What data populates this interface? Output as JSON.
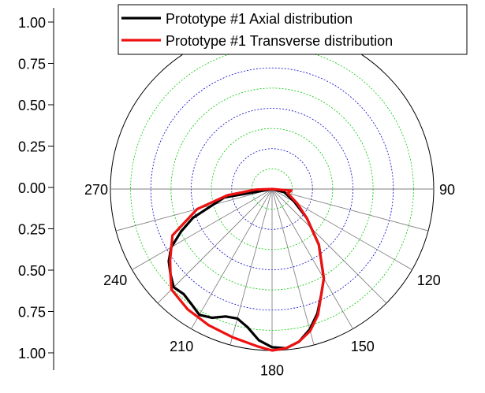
{
  "chart_data": {
    "type": "polar-line",
    "radial_axis": {
      "ticks": [
        "1.00",
        "0.75",
        "0.50",
        "0.25",
        "0.00",
        "0.25",
        "0.50",
        "0.75",
        "1.00"
      ],
      "range": [
        0,
        1
      ]
    },
    "angular_axis": {
      "ticks": [
        90,
        120,
        150,
        180,
        210,
        240,
        270
      ],
      "zero_direction": "up",
      "orientation": "clockwise"
    },
    "grid": true,
    "grid_colors": [
      "#0000cc",
      "#00cc00"
    ],
    "legend": {
      "position": "top-right"
    },
    "series": [
      {
        "name": "Prototype #1 Axial distribution",
        "color": "#000000",
        "points": [
          [
            90,
            0.0
          ],
          [
            105,
            0.08
          ],
          [
            120,
            0.16
          ],
          [
            130,
            0.28
          ],
          [
            140,
            0.45
          ],
          [
            150,
            0.64
          ],
          [
            155,
            0.72
          ],
          [
            160,
            0.82
          ],
          [
            165,
            0.9
          ],
          [
            170,
            0.96
          ],
          [
            175,
            0.99
          ],
          [
            180,
            0.98
          ],
          [
            185,
            0.94
          ],
          [
            190,
            0.87
          ],
          [
            195,
            0.83
          ],
          [
            200,
            0.84
          ],
          [
            205,
            0.88
          ],
          [
            210,
            0.9
          ],
          [
            215,
            0.87
          ],
          [
            220,
            0.85
          ],
          [
            225,
            0.86
          ],
          [
            230,
            0.82
          ],
          [
            235,
            0.78
          ],
          [
            240,
            0.72
          ],
          [
            245,
            0.62
          ],
          [
            250,
            0.52
          ],
          [
            260,
            0.3
          ],
          [
            270,
            0.0
          ]
        ]
      },
      {
        "name": "Prototype #1 Transverse distribution",
        "color": "#ee1111",
        "points": [
          [
            90,
            0.0
          ],
          [
            95,
            0.12
          ],
          [
            105,
            0.1
          ],
          [
            120,
            0.18
          ],
          [
            130,
            0.28
          ],
          [
            140,
            0.45
          ],
          [
            150,
            0.64
          ],
          [
            155,
            0.72
          ],
          [
            160,
            0.83
          ],
          [
            165,
            0.91
          ],
          [
            170,
            0.96
          ],
          [
            175,
            0.99
          ],
          [
            180,
            1.0
          ],
          [
            185,
            0.98
          ],
          [
            195,
            0.95
          ],
          [
            205,
            0.93
          ],
          [
            215,
            0.91
          ],
          [
            225,
            0.88
          ],
          [
            230,
            0.82
          ],
          [
            235,
            0.77
          ],
          [
            245,
            0.68
          ],
          [
            255,
            0.48
          ],
          [
            262,
            0.28
          ],
          [
            268,
            0.1
          ],
          [
            270,
            0.0
          ]
        ]
      }
    ]
  }
}
